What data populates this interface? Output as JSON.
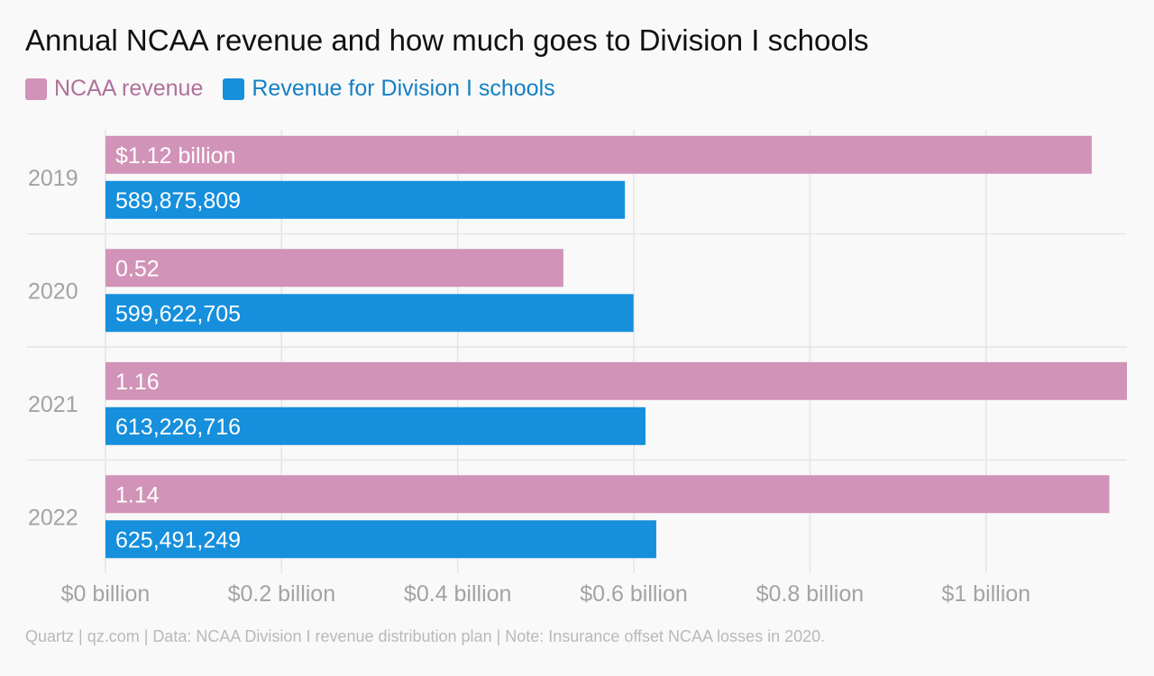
{
  "chart_data": {
    "type": "bar",
    "orientation": "horizontal",
    "title": "Annual NCAA revenue and how much goes to Division I schools",
    "categories": [
      "2019",
      "2020",
      "2021",
      "2022"
    ],
    "series": [
      {
        "name": "NCAA revenue",
        "color": "#d193b7",
        "values": [
          1.12,
          0.52,
          1.16,
          1.14
        ],
        "labels": [
          "$1.12 billion",
          "0.52",
          "1.16",
          "1.14"
        ]
      },
      {
        "name": "Revenue for Division I schools",
        "color": "#168fdc",
        "values": [
          0.589875809,
          0.599622705,
          0.613226716,
          0.625491249
        ],
        "labels": [
          "589,875,809",
          "599,622,705",
          "613,226,716",
          "625,491,249"
        ]
      }
    ],
    "xlim": [
      0,
      1.16
    ],
    "xticks": [
      0,
      0.2,
      0.4,
      0.6,
      0.8,
      1.0
    ],
    "xtick_labels": [
      "$0 billion",
      "$0.2 billion",
      "$0.4 billion",
      "$0.6 billion",
      "$0.8 billion",
      "$1 billion"
    ],
    "grid": true,
    "legend_position": "top-left"
  },
  "footer": "Quartz | qz.com | Data: NCAA Division I revenue distribution plan | Note: Insurance offset NCAA losses in 2020."
}
